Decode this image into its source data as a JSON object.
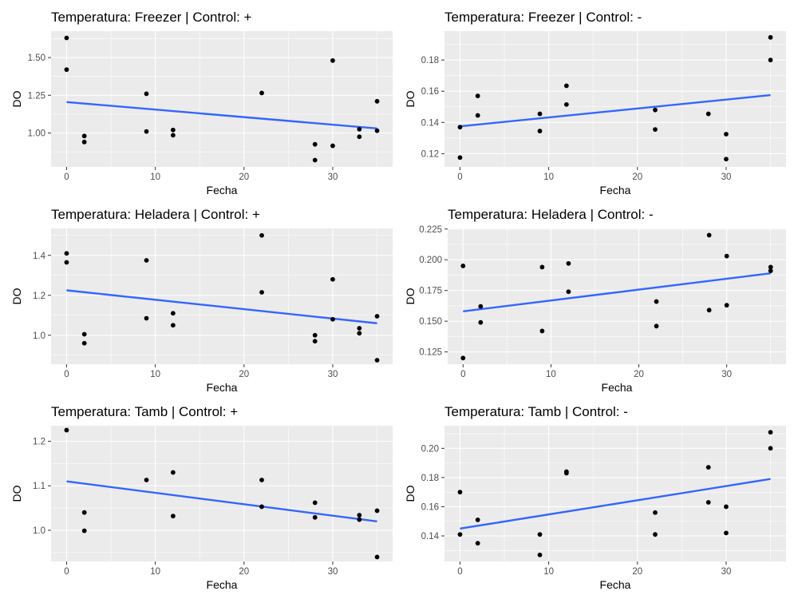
{
  "chart_data": [
    {
      "type": "scatter",
      "title": "Temperatura: Freezer | Control: +",
      "xlabel": "Fecha",
      "ylabel": "DO",
      "xlim": [
        -1.75,
        36.75
      ],
      "ylim": [
        0.775,
        1.675
      ],
      "xticks": [
        0,
        10,
        20,
        30
      ],
      "xtick_labels": [
        "0",
        "10",
        "20",
        "30"
      ],
      "yticks": [
        1.0,
        1.25,
        1.5
      ],
      "ytick_labels": [
        "1.00",
        "1.25",
        "1.50"
      ],
      "points": [
        [
          0,
          1.63
        ],
        [
          0,
          1.42
        ],
        [
          2,
          0.98
        ],
        [
          2,
          0.94
        ],
        [
          9,
          1.26
        ],
        [
          9,
          1.01
        ],
        [
          12,
          1.02
        ],
        [
          12,
          0.985
        ],
        [
          22,
          1.265
        ],
        [
          28,
          0.925
        ],
        [
          28,
          0.82
        ],
        [
          30,
          1.48
        ],
        [
          30,
          0.915
        ],
        [
          33,
          1.025
        ],
        [
          33,
          0.975
        ],
        [
          35,
          1.21
        ],
        [
          35,
          1.015
        ]
      ],
      "fit_line": [
        [
          0,
          1.205
        ],
        [
          35,
          1.03
        ]
      ],
      "grid": true
    },
    {
      "type": "scatter",
      "title": "Temperatura: Freezer | Control: -",
      "xlabel": "Fecha",
      "ylabel": "DO",
      "xlim": [
        -1.75,
        36.75
      ],
      "ylim": [
        0.1115,
        0.1985
      ],
      "xticks": [
        0,
        10,
        20,
        30
      ],
      "xtick_labels": [
        "0",
        "10",
        "20",
        "30"
      ],
      "yticks": [
        0.12,
        0.14,
        0.16,
        0.18
      ],
      "ytick_labels": [
        "0.12",
        "0.14",
        "0.16",
        "0.18"
      ],
      "points": [
        [
          0,
          0.137
        ],
        [
          0,
          0.1175
        ],
        [
          2,
          0.157
        ],
        [
          2,
          0.1445
        ],
        [
          9,
          0.1455
        ],
        [
          9,
          0.1345
        ],
        [
          12,
          0.1635
        ],
        [
          12,
          0.1515
        ],
        [
          22,
          0.148
        ],
        [
          22,
          0.1355
        ],
        [
          28,
          0.1455
        ],
        [
          30,
          0.1325
        ],
        [
          30,
          0.1165
        ],
        [
          35,
          0.1945
        ],
        [
          35,
          0.18
        ]
      ],
      "fit_line": [
        [
          0,
          0.1375
        ],
        [
          35,
          0.1575
        ]
      ],
      "grid": true
    },
    {
      "type": "scatter",
      "title": "Temperatura: Heladera | Control: +",
      "xlabel": "Fecha",
      "ylabel": "DO",
      "xlim": [
        -1.75,
        36.75
      ],
      "ylim": [
        0.855,
        1.535
      ],
      "xticks": [
        0,
        10,
        20,
        30
      ],
      "xtick_labels": [
        "0",
        "10",
        "20",
        "30"
      ],
      "yticks": [
        1.0,
        1.2,
        1.4
      ],
      "ytick_labels": [
        "1.0",
        "1.2",
        "1.4"
      ],
      "points": [
        [
          0,
          1.41
        ],
        [
          0,
          1.365
        ],
        [
          2,
          1.005
        ],
        [
          2,
          0.96
        ],
        [
          9,
          1.375
        ],
        [
          9,
          1.085
        ],
        [
          12,
          1.11
        ],
        [
          12,
          1.05
        ],
        [
          22,
          1.5
        ],
        [
          22,
          1.215
        ],
        [
          28,
          1.0
        ],
        [
          28,
          0.97
        ],
        [
          30,
          1.28
        ],
        [
          30,
          1.08
        ],
        [
          33,
          1.035
        ],
        [
          33,
          1.01
        ],
        [
          35,
          1.095
        ],
        [
          35,
          0.875
        ]
      ],
      "fit_line": [
        [
          0,
          1.225
        ],
        [
          35,
          1.06
        ]
      ],
      "grid": true
    },
    {
      "type": "scatter",
      "title": "Temperatura: Heladera | Control: -",
      "xlabel": "Fecha",
      "ylabel": "DO",
      "xlim": [
        -1.75,
        36.75
      ],
      "ylim": [
        0.115,
        0.2255
      ],
      "xticks": [
        0,
        10,
        20,
        30
      ],
      "xtick_labels": [
        "0",
        "10",
        "20",
        "30"
      ],
      "yticks": [
        0.125,
        0.15,
        0.175,
        0.2,
        0.225
      ],
      "ytick_labels": [
        "0.125",
        "0.150",
        "0.175",
        "0.200",
        "0.225"
      ],
      "points": [
        [
          0,
          0.195
        ],
        [
          0,
          0.12
        ],
        [
          2,
          0.162
        ],
        [
          2,
          0.149
        ],
        [
          9,
          0.194
        ],
        [
          9,
          0.142
        ],
        [
          12,
          0.197
        ],
        [
          12,
          0.174
        ],
        [
          22,
          0.166
        ],
        [
          22,
          0.146
        ],
        [
          28,
          0.22
        ],
        [
          28,
          0.159
        ],
        [
          30,
          0.203
        ],
        [
          30,
          0.163
        ],
        [
          35,
          0.194
        ],
        [
          35,
          0.191
        ]
      ],
      "fit_line": [
        [
          0,
          0.158
        ],
        [
          35,
          0.189
        ]
      ],
      "grid": true
    },
    {
      "type": "scatter",
      "title": "Temperatura: Tamb | Control: +",
      "xlabel": "Fecha",
      "ylabel": "DO",
      "xlim": [
        -1.75,
        36.75
      ],
      "ylim": [
        0.93,
        1.235
      ],
      "xticks": [
        0,
        10,
        20,
        30
      ],
      "xtick_labels": [
        "0",
        "10",
        "20",
        "30"
      ],
      "yticks": [
        1.0,
        1.1,
        1.2
      ],
      "ytick_labels": [
        "1.0",
        "1.1",
        "1.2"
      ],
      "points": [
        [
          0,
          1.225
        ],
        [
          2,
          1.04
        ],
        [
          2,
          0.999
        ],
        [
          9,
          1.113
        ],
        [
          12,
          1.13
        ],
        [
          12,
          1.032
        ],
        [
          22,
          1.113
        ],
        [
          22,
          1.053
        ],
        [
          28,
          1.062
        ],
        [
          28,
          1.029
        ],
        [
          33,
          1.034
        ],
        [
          33,
          1.024
        ],
        [
          35,
          1.044
        ],
        [
          35,
          0.94
        ]
      ],
      "fit_line": [
        [
          0,
          1.11
        ],
        [
          35,
          1.02
        ]
      ],
      "grid": true
    },
    {
      "type": "scatter",
      "title": "Temperatura: Tamb | Control: -",
      "xlabel": "Fecha",
      "ylabel": "DO",
      "xlim": [
        -1.75,
        36.75
      ],
      "ylim": [
        0.1225,
        0.2155
      ],
      "xticks": [
        0,
        10,
        20,
        30
      ],
      "xtick_labels": [
        "0",
        "10",
        "20",
        "30"
      ],
      "yticks": [
        0.14,
        0.16,
        0.18,
        0.2
      ],
      "ytick_labels": [
        "0.14",
        "0.16",
        "0.18",
        "0.20"
      ],
      "points": [
        [
          0,
          0.17
        ],
        [
          0,
          0.141
        ],
        [
          2,
          0.151
        ],
        [
          2,
          0.135
        ],
        [
          9,
          0.141
        ],
        [
          9,
          0.127
        ],
        [
          12,
          0.184
        ],
        [
          12,
          0.183
        ],
        [
          22,
          0.156
        ],
        [
          22,
          0.141
        ],
        [
          28,
          0.187
        ],
        [
          28,
          0.163
        ],
        [
          30,
          0.16
        ],
        [
          30,
          0.142
        ],
        [
          35,
          0.211
        ],
        [
          35,
          0.2
        ]
      ],
      "fit_line": [
        [
          0,
          0.145
        ],
        [
          35,
          0.179
        ]
      ],
      "grid": true
    }
  ],
  "style": {
    "panel_background": "#ebebeb",
    "grid_color": "#ffffff",
    "point_color": "#000000",
    "trend_line_color": "#3366ff",
    "tick_label_color": "#4d4d4d"
  }
}
